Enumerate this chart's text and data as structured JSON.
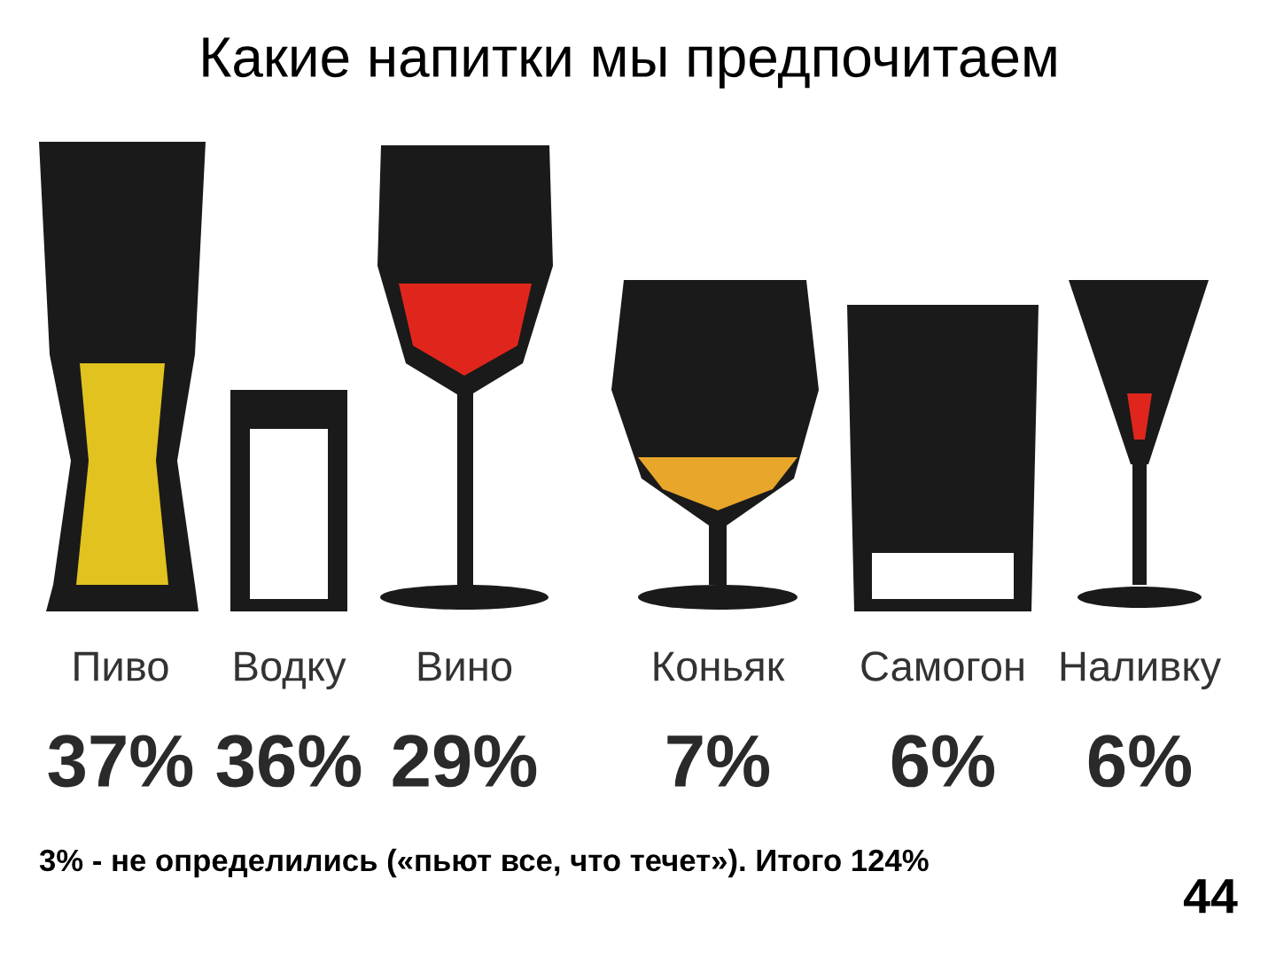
{
  "chart_data": {
    "type": "other",
    "title": "Какие напитки мы предпочитаем",
    "categories": [
      "Пиво",
      "Водку",
      "Вино",
      "Коньяк",
      "Самогон",
      "Наливку"
    ],
    "values": [
      37,
      36,
      29,
      7,
      6,
      6
    ],
    "value_labels": [
      "37%",
      "36%",
      "29%",
      "7%",
      "6%",
      "6%"
    ],
    "annotations": [
      "3% - не определились («пьют все, что течет»). Итого 124%",
      "44"
    ]
  }
}
